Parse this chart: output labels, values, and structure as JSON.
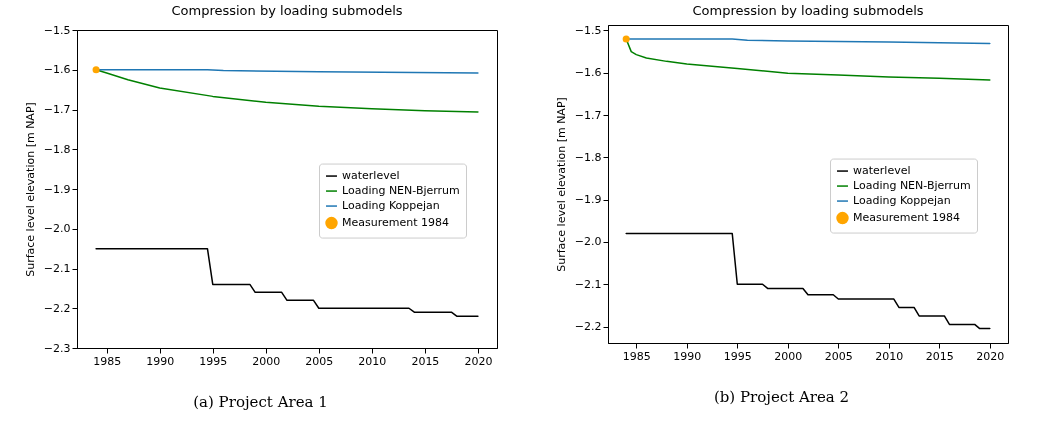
{
  "chart_data": [
    {
      "type": "line",
      "title": "Compression by loading submodels",
      "ylabel": "Surface level elevation [m NAP]",
      "xlim": [
        1982.2,
        2021.8
      ],
      "xticks": [
        1985,
        1990,
        1995,
        2000,
        2005,
        2010,
        2015,
        2020
      ],
      "ylim": [
        -2.3,
        -1.5
      ],
      "yticks": [
        -2.3,
        -2.2,
        -2.1,
        {
          "value": -2,
          "label": "−2.0"
        },
        -1.9,
        -1.8,
        -1.7,
        -1.6,
        -1.5
      ],
      "grid": false,
      "legend": "center right",
      "annotations": [
        "(a) Project Area 1"
      ],
      "series": [
        {
          "name": "waterlevel",
          "color": "#000000",
          "type": "line",
          "marker": "none",
          "x": [
            1984,
            1994.5,
            1995,
            1998.5,
            1999,
            2001.5,
            2002,
            2004.5,
            2005,
            2013.5,
            2014,
            2017.5,
            2018,
            2020
          ],
          "values": [
            -2.05,
            -2.05,
            -2.14,
            -2.14,
            -2.16,
            -2.16,
            -2.18,
            -2.18,
            -2.2,
            -2.2,
            -2.21,
            -2.21,
            -2.22,
            -2.22
          ]
        },
        {
          "name": "Loading NEN-Bjerrum",
          "color": "#008000",
          "type": "line",
          "marker": "none",
          "x": [
            1984,
            1985,
            1987,
            1990,
            1995,
            2000,
            2005,
            2010,
            2015,
            2020
          ],
          "values": [
            -1.6,
            -1.608,
            -1.625,
            -1.646,
            -1.667,
            -1.682,
            -1.692,
            -1.698,
            -1.703,
            -1.706
          ]
        },
        {
          "name": "Loading Koppejan",
          "color": "#1f77b4",
          "type": "line",
          "marker": "none",
          "x": [
            1984,
            1994.5,
            1996,
            2005,
            2020
          ],
          "values": [
            -1.6,
            -1.6,
            -1.602,
            -1.605,
            -1.608
          ]
        },
        {
          "name": "Measurement 1984",
          "color": "#ffa500",
          "type": "scatter",
          "marker": "circle",
          "x": [
            1984
          ],
          "values": [
            -1.6
          ]
        }
      ]
    },
    {
      "type": "line",
      "title": "Compression by loading submodels",
      "ylabel": "Surface level elevation [m NAP]",
      "xlim": [
        1982.2,
        2021.8
      ],
      "xticks": [
        1985,
        1990,
        1995,
        2000,
        2005,
        2010,
        2015,
        2020
      ],
      "ylim": [
        -2.239,
        -1.487
      ],
      "yticks": [
        -2.2,
        -2.1,
        {
          "value": -2,
          "label": "−2.0"
        },
        -1.9,
        -1.8,
        -1.7,
        -1.6,
        -1.5
      ],
      "grid": false,
      "legend": "center right",
      "annotations": [
        "(b) Project Area 2"
      ],
      "series": [
        {
          "name": "waterlevel",
          "color": "#000000",
          "type": "line",
          "marker": "none",
          "x": [
            1984,
            1994.5,
            1995,
            1997.5,
            1998,
            2001.5,
            2002,
            2004.5,
            2005,
            2010.5,
            2011,
            2012.5,
            2013,
            2015.5,
            2016,
            2018.5,
            2019,
            2020
          ],
          "values": [
            -1.98,
            -1.98,
            -2.1,
            -2.1,
            -2.11,
            -2.11,
            -2.125,
            -2.125,
            -2.135,
            -2.135,
            -2.155,
            -2.155,
            -2.175,
            -2.175,
            -2.195,
            -2.195,
            -2.205,
            -2.205
          ]
        },
        {
          "name": "Loading NEN-Bjerrum",
          "color": "#008000",
          "type": "line",
          "marker": "none",
          "x": [
            1984,
            1984.5,
            1985,
            1986,
            1988,
            1990,
            1995,
            2000,
            2005,
            2010,
            2015,
            2020
          ],
          "values": [
            -1.52,
            -1.55,
            -1.557,
            -1.565,
            -1.573,
            -1.579,
            -1.59,
            -1.601,
            -1.605,
            -1.61,
            -1.613,
            -1.617
          ]
        },
        {
          "name": "Loading Koppejan",
          "color": "#1f77b4",
          "type": "line",
          "marker": "none",
          "x": [
            1984,
            1994.5,
            1996,
            2000,
            2010,
            2020
          ],
          "values": [
            -1.52,
            -1.52,
            -1.523,
            -1.525,
            -1.527,
            -1.531
          ]
        },
        {
          "name": "Measurement 1984",
          "color": "#ffa500",
          "type": "scatter",
          "marker": "circle",
          "x": [
            1984
          ],
          "values": [
            -1.52
          ]
        }
      ]
    }
  ]
}
